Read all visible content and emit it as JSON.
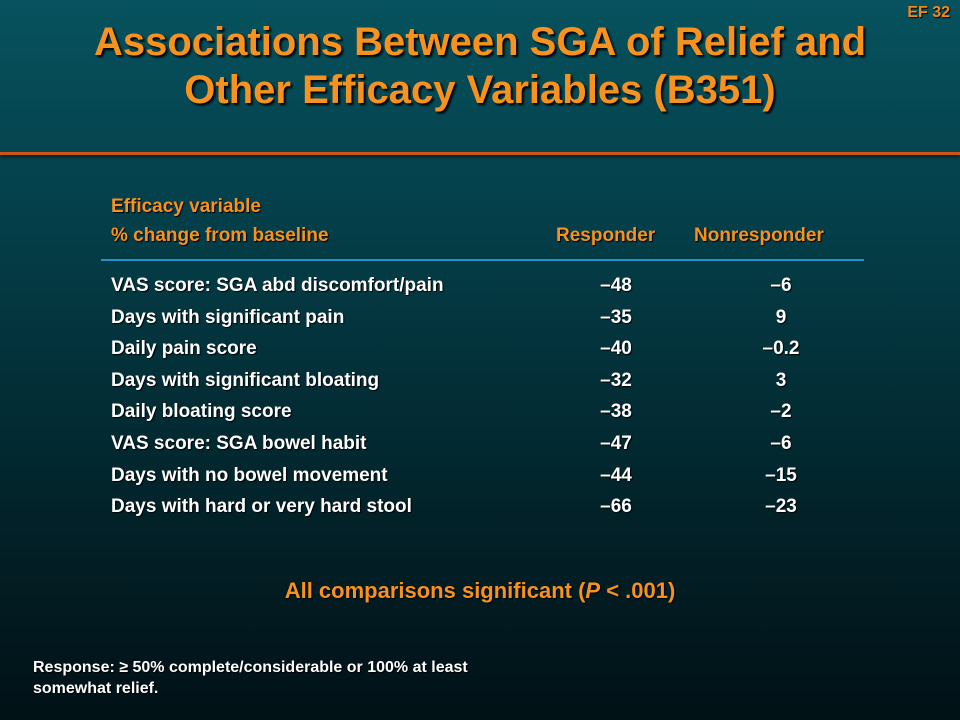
{
  "slide_number": "EF 32",
  "title": {
    "line1": "Associations Between SGA of Relief and",
    "line2": "Other Efficacy Variables (B351)"
  },
  "table": {
    "header": {
      "variable_line1": "Efficacy variable",
      "variable_line2": "% change from baseline",
      "responder": "Responder",
      "nonresponder": "Nonresponder"
    },
    "rows": [
      {
        "variable": "VAS score: SGA abd discomfort/pain",
        "responder": "–48",
        "nonresponder": "–6"
      },
      {
        "variable": "Days with significant pain",
        "responder": "–35",
        "nonresponder": "9"
      },
      {
        "variable": "Daily pain score",
        "responder": "–40",
        "nonresponder": "–0.2"
      },
      {
        "variable": "Days with significant bloating",
        "responder": "–32",
        "nonresponder": "3"
      },
      {
        "variable": "Daily bloating score",
        "responder": "–38",
        "nonresponder": "–2"
      },
      {
        "variable": "VAS score: SGA bowel habit",
        "responder": "–47",
        "nonresponder": "–6"
      },
      {
        "variable": "Days with no bowel movement",
        "responder": "–44",
        "nonresponder": "–15"
      },
      {
        "variable": "Days with hard or very hard stool",
        "responder": "–66",
        "nonresponder": "–23"
      }
    ]
  },
  "significance": {
    "prefix": "All comparisons significant (",
    "p": "P",
    "suffix": " < .001)"
  },
  "footnote": {
    "line1": "Response: ≥ 50% complete/considerable or 100% at least",
    "line2": "somewhat relief."
  },
  "colors": {
    "accent_orange": "#f7921e",
    "rule_blue": "#2a8fc8",
    "background_teal": "#06525e"
  }
}
